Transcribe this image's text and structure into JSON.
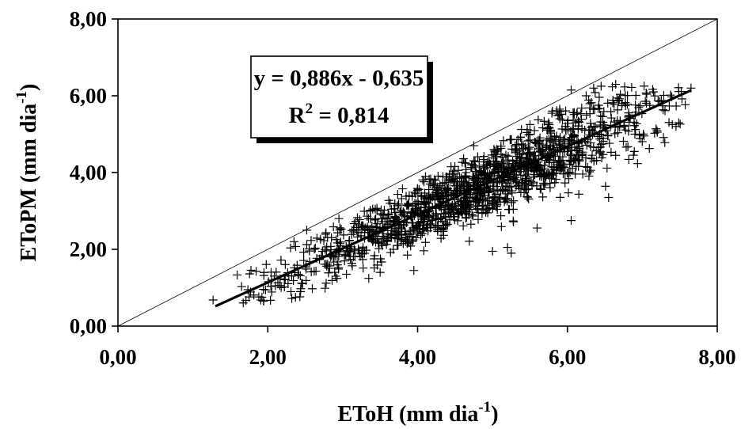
{
  "chart_data": {
    "type": "scatter",
    "xlim": [
      0,
      8
    ],
    "ylim": [
      0,
      8
    ],
    "x_ticks": [
      "0,00",
      "2,00",
      "4,00",
      "6,00",
      "8,00"
    ],
    "y_ticks": [
      "0,00",
      "2,00",
      "4,00",
      "6,00",
      "8,00"
    ],
    "xlabel": {
      "main": "EToH (mm dia",
      "sup": "-1",
      "close": ")"
    },
    "ylabel": {
      "main": "EToPM (mm dia",
      "sup": "-1",
      "close": ")"
    },
    "grid": false,
    "marker": "+",
    "marker_color": "#000000",
    "annotation": {
      "equation": "y = 0,886x - 0,635",
      "r2_prefix": "R",
      "r2_sup": "2",
      "r2_value": " = 0,814"
    },
    "regression_line": {
      "slope": 0.886,
      "intercept": -0.635,
      "x_range": [
        1.3,
        7.65
      ]
    },
    "reference_line": {
      "slope": 1,
      "intercept": 0
    },
    "point_cloud": {
      "n": 1500,
      "x_range": [
        1.25,
        7.65
      ],
      "x_center": 4.8,
      "x_spread": 1.25,
      "slope": 0.886,
      "intercept": -0.635,
      "residual_sd": 0.42
    },
    "points": [
      [
        1.27,
        0.68
      ],
      [
        1.65,
        1.03
      ],
      [
        1.75,
        0.76
      ],
      [
        1.88,
        0.76
      ],
      [
        2.05,
        1.2
      ],
      [
        2.32,
        0.72
      ],
      [
        2.37,
        0.75
      ],
      [
        2.35,
        2.2
      ],
      [
        2.52,
        2.5
      ],
      [
        2.95,
        2.8
      ],
      [
        3.05,
        1.35
      ],
      [
        3.5,
        1.4
      ],
      [
        3.4,
        3.05
      ],
      [
        3.95,
        1.45
      ],
      [
        4.75,
        4.7
      ],
      [
        5.0,
        1.95
      ],
      [
        5.2,
        2.05
      ],
      [
        5.25,
        1.9
      ],
      [
        5.5,
        5.25
      ],
      [
        5.75,
        5.3
      ],
      [
        6.05,
        6.15
      ],
      [
        6.35,
        6.2
      ],
      [
        6.45,
        6.25
      ],
      [
        6.55,
        3.35
      ],
      [
        6.05,
        2.75
      ],
      [
        7.15,
        6.1
      ],
      [
        7.1,
        5.75
      ],
      [
        7.2,
        5.05
      ],
      [
        7.3,
        4.78
      ],
      [
        7.4,
        5.25
      ],
      [
        7.45,
        5.2
      ],
      [
        7.65,
        6.2
      ],
      [
        6.9,
        5.0
      ],
      [
        6.25,
        6.0
      ],
      [
        5.8,
        5.6
      ]
    ]
  }
}
